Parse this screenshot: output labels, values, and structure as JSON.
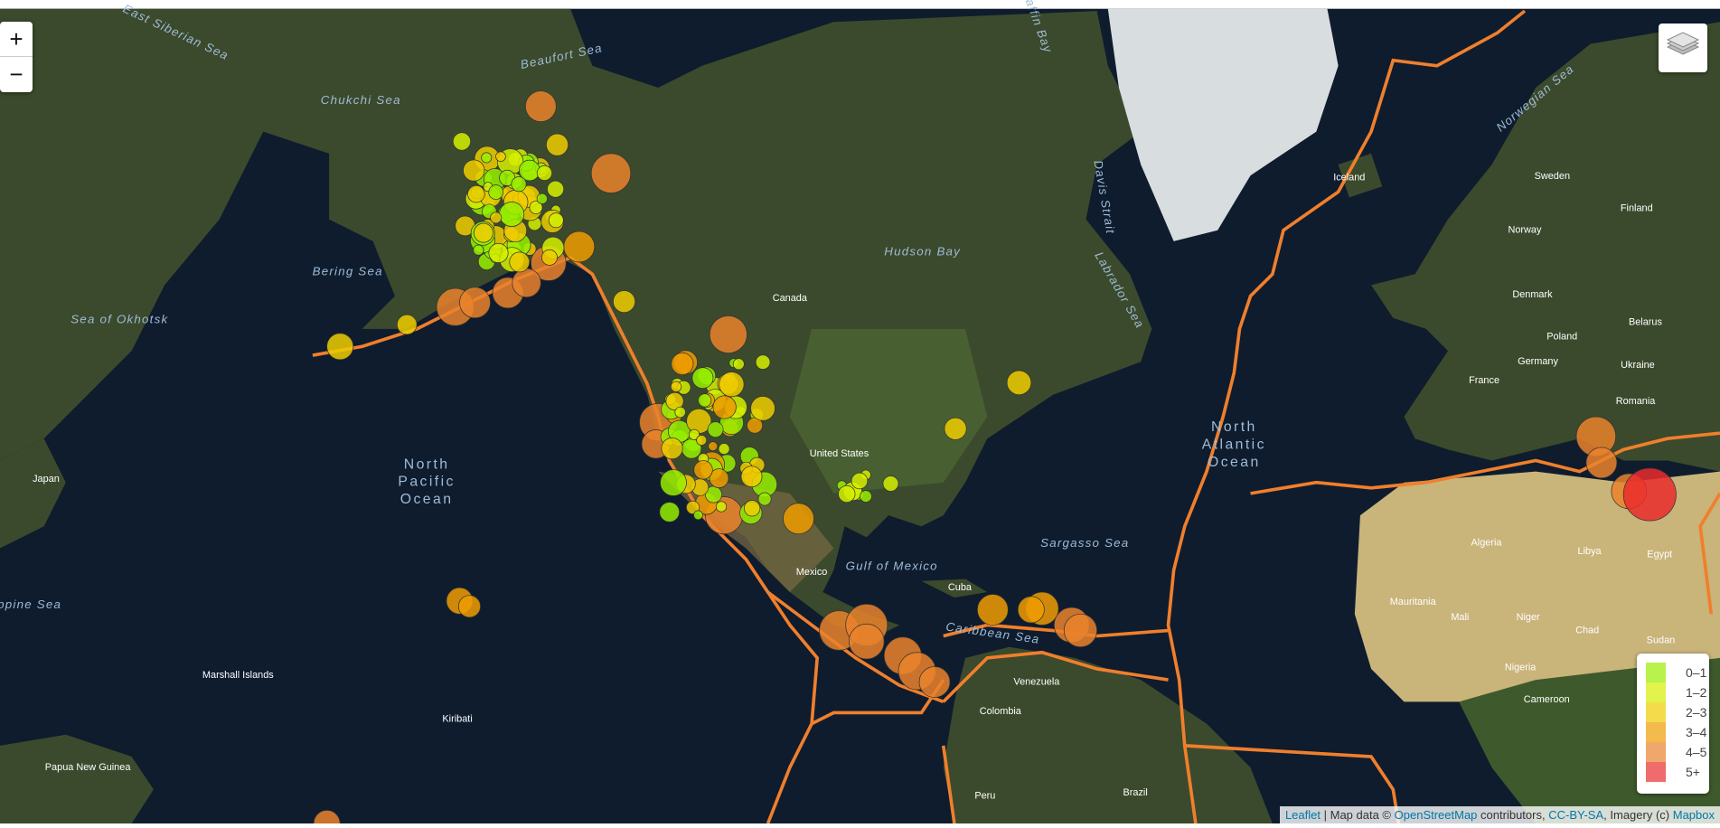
{
  "controls": {
    "zoom_in": "+",
    "zoom_out": "−"
  },
  "legend": {
    "items": [
      {
        "label": "0–1",
        "color": "#98ee00"
      },
      {
        "label": "1–2",
        "color": "#d4ee00"
      },
      {
        "label": "2–3",
        "color": "#eecc00"
      },
      {
        "label": "3–4",
        "color": "#ee9c00"
      },
      {
        "label": "4–5",
        "color": "#ea822c"
      },
      {
        "label": "5+",
        "color": "#ea2c2c"
      }
    ]
  },
  "plate_color": "#f07f2c",
  "labels": {
    "seas": [
      "East Siberian Sea",
      "Beaufort Sea",
      "Chukchi Sea",
      "Bering Sea",
      "Sea of Okhotsk",
      "Hudson Bay",
      "Labrador Sea",
      "Davis Strait",
      "Baffin Bay",
      "Norwegian Sea",
      "Gulf of Mexico",
      "Caribbean Sea",
      "Sargasso Sea",
      "Philippine Sea"
    ],
    "oceans": [
      "North Pacific Ocean",
      "North Atlantic Ocean"
    ],
    "countries": [
      "Canada",
      "United States",
      "Mexico",
      "Cuba",
      "Venezuela",
      "Colombia",
      "Brazil",
      "Peru",
      "Sweden",
      "Finland",
      "Norway",
      "Denmark",
      "Poland",
      "Germany",
      "France",
      "Belarus",
      "Ukraine",
      "Romania",
      "Algeria",
      "Libya",
      "Egypt",
      "Mali",
      "Niger",
      "Chad",
      "Sudan",
      "Nigeria",
      "Mauritania",
      "Cameroon",
      "Japan",
      "Papua New Guinea",
      "Kiribati",
      "Marshall Islands",
      "Iceland"
    ]
  },
  "attribution": {
    "leaflet": "Leaflet",
    "map_data": "| Map data ©",
    "osm": "OpenStreetMap",
    "contributors": "contributors,",
    "license": "CC-BY-SA",
    "imagery": ", Imagery (c)",
    "provider": "Mapbox"
  }
}
